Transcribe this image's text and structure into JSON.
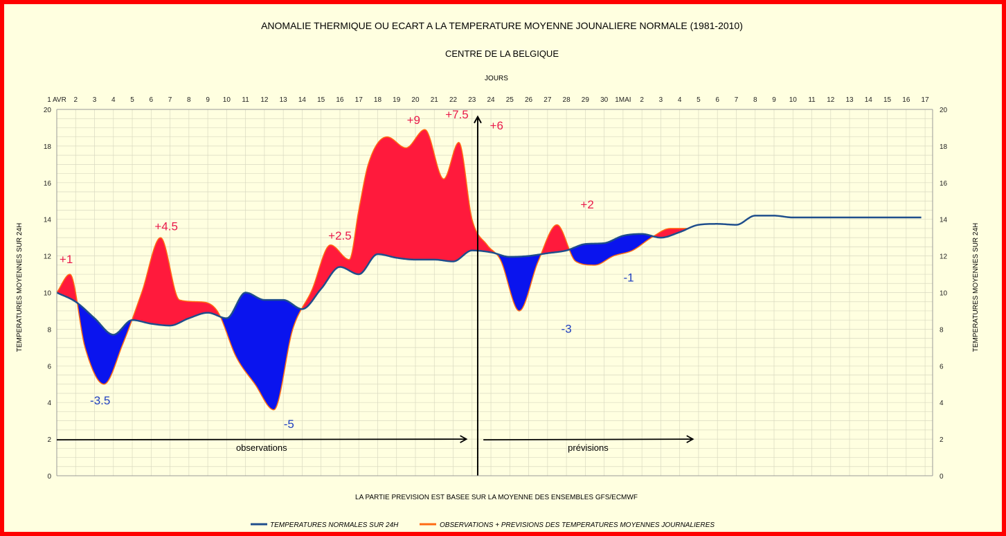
{
  "chart_data": {
    "type": "area",
    "title": "ANOMALIE THERMIQUE OU ECART A LA TEMPERATURE MOYENNE JOUNALIERE NORMALE (1981-2010)",
    "subtitle": "CENTRE DE LA BELGIQUE",
    "xlabel": "JOURS",
    "ylabel": "TEMPERATURES MOYENNES SUR 24H",
    "ylabel_right": "TEMPERATURES MOYENNES SUR 24H",
    "footnote": "LA PARTIE PREVISION EST BASEE SUR LA MOYENNE DES ENSEMBLES GFS/ECMWF",
    "ylim": [
      0,
      20
    ],
    "yticks": [
      0,
      2,
      4,
      6,
      8,
      10,
      12,
      14,
      16,
      18,
      20
    ],
    "xlim": [
      0,
      46.4
    ],
    "grid": true,
    "legend_position": "bottom",
    "x_tick_labels": [
      "1 AVR",
      "2",
      "3",
      "4",
      "5",
      "6",
      "7",
      "8",
      "9",
      "10",
      "11",
      "12",
      "13",
      "14",
      "15",
      "16",
      "17",
      "18",
      "19",
      "20",
      "21",
      "22",
      "23",
      "24",
      "25",
      "26",
      "27",
      "28",
      "29",
      "30",
      "1MAI",
      "2",
      "3",
      "4",
      "5",
      "6",
      "7",
      "8",
      "9",
      "10",
      "11",
      "12",
      "13",
      "14",
      "15",
      "16",
      "17"
    ],
    "series": [
      {
        "name": "TEMPERATURES NORMALES SUR 24H",
        "color": "#1f4e8c",
        "x": [
          0,
          1,
          2,
          3,
          4,
          5,
          6,
          7,
          8,
          9,
          10,
          11,
          12,
          13,
          14,
          15,
          16,
          17,
          18,
          19,
          20,
          21,
          22,
          23,
          24,
          25,
          26,
          27,
          28,
          29,
          30,
          31,
          32,
          33,
          34,
          35,
          36,
          37,
          38,
          39,
          40,
          41,
          42,
          43,
          44,
          45,
          46,
          46.4
        ],
        "values": [
          10.0,
          9.5,
          8.6,
          7.7,
          8.5,
          8.3,
          8.2,
          8.6,
          8.9,
          8.6,
          10.0,
          9.6,
          9.6,
          9.1,
          10.2,
          11.4,
          11.0,
          12.1,
          11.9,
          11.8,
          11.8,
          11.7,
          12.3,
          12.2,
          11.95,
          12.0,
          12.15,
          12.3,
          12.65,
          12.7,
          13.1,
          13.2,
          13.0,
          13.3,
          13.7,
          13.75,
          13.7,
          14.2,
          14.2,
          14.1,
          14.1,
          14.1,
          14.1,
          14.1,
          14.1,
          14.1,
          14.1,
          14.1
        ]
      },
      {
        "name": "OBSERVATIONS + PREVISIONS DES TEMPERATURES MOYENNES JOURNALIERES",
        "color": "#ff6a13",
        "x": [
          0,
          0.7,
          1.5,
          2.5,
          3.5,
          4.5,
          5.5,
          6.5,
          7.5,
          8.5,
          9.5,
          10.5,
          11.5,
          12.5,
          13.5,
          14.5,
          15.5,
          16,
          16.5,
          17.5,
          18.5,
          19.5,
          20.5,
          21.3,
          22,
          22.8,
          23.5,
          24.5,
          25.5,
          26.5,
          27.5,
          28.5,
          29.5,
          30.5,
          31.5,
          32.5,
          33.5,
          34.5
        ],
        "values": [
          10.0,
          11.0,
          7.0,
          5.0,
          7.2,
          10.0,
          13.0,
          9.6,
          9.5,
          9.0,
          6.5,
          5.0,
          3.6,
          8.0,
          10.1,
          12.6,
          11.8,
          14.5,
          17.0,
          18.5,
          17.9,
          18.9,
          16.2,
          18.2,
          14.0,
          12.6,
          11.8,
          9.0,
          11.7,
          13.7,
          11.7,
          11.5,
          12.0,
          12.3,
          13.0,
          13.5,
          13.5,
          13.5
        ]
      }
    ],
    "series_clip_x": [
      45.8,
      33.4
    ],
    "annotations": [
      {
        "text": "+1",
        "x": 0.5,
        "y": 11.6,
        "color": "#e8194a"
      },
      {
        "text": "-3.5",
        "x": 2.3,
        "y": 3.9,
        "color": "#1f3fbf"
      },
      {
        "text": "+4.5",
        "x": 5.8,
        "y": 13.4,
        "color": "#e8194a"
      },
      {
        "text": "-5",
        "x": 12.3,
        "y": 2.6,
        "color": "#1f3fbf"
      },
      {
        "text": "+2.5",
        "x": 15.0,
        "y": 12.9,
        "color": "#e8194a"
      },
      {
        "text": "+9",
        "x": 18.9,
        "y": 19.2,
        "color": "#e8194a"
      },
      {
        "text": "+7.5",
        "x": 21.2,
        "y": 19.5,
        "color": "#e8194a"
      },
      {
        "text": "+6",
        "x": 23.3,
        "y": 18.9,
        "color": "#e8194a"
      },
      {
        "text": "+2",
        "x": 28.1,
        "y": 14.6,
        "color": "#e8194a"
      },
      {
        "text": "-3",
        "x": 27.0,
        "y": 7.8,
        "color": "#1f3fbf"
      },
      {
        "text": "-1",
        "x": 30.3,
        "y": 10.6,
        "color": "#1f3fbf"
      }
    ],
    "arrows": [
      {
        "label": "observations",
        "x_start": 0,
        "x_end": 21.7,
        "y": 2.0
      },
      {
        "label": "prévisions",
        "x_start": 22.6,
        "x_end": 33.7,
        "y": 2.0
      }
    ],
    "divider_x": 22.3,
    "colors": {
      "above": "#ff1a3c",
      "below": "#0a14ee",
      "frame": "#ff0000",
      "background": "#ffffe0",
      "grid": "#d9d9c0"
    }
  }
}
